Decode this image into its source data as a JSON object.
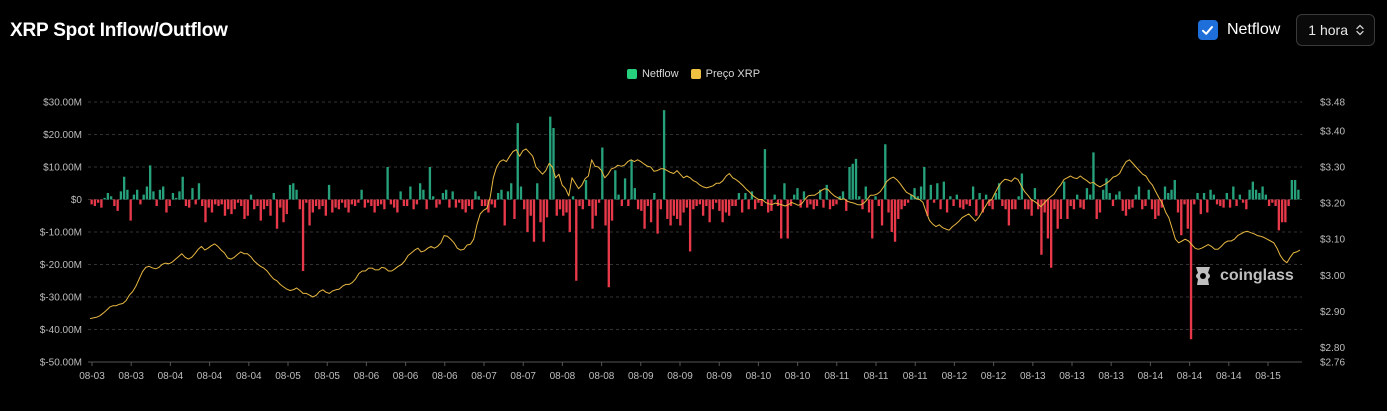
{
  "header": {
    "title": "XRP Spot Inflow/Outflow"
  },
  "controls": {
    "netflow_checkbox_label": "Netflow",
    "netflow_checked": true,
    "interval_value": "1 hora"
  },
  "colors": {
    "positive": "#26a17b",
    "negative": "#e8394a",
    "price": "#e8b842",
    "grid": "#333333",
    "checkbox": "#1e6fd9"
  },
  "watermark": "coinglass",
  "chart_data": {
    "type": "bar",
    "title": "XRP Spot Inflow/Outflow",
    "legend": [
      "Netflow",
      "Preço XRP"
    ],
    "legend_position": "top-center",
    "grid": true,
    "y_left": {
      "ticks": [
        30,
        20,
        10,
        0,
        -10,
        -20,
        -30,
        -40,
        -50
      ],
      "tick_labels": [
        "$30.00M",
        "$20.00M",
        "$10.00M",
        "$0",
        "$-10.00M",
        "$-20.00M",
        "$-30.00M",
        "$-40.00M",
        "$-50.00M"
      ],
      "ylim": [
        -50,
        30
      ],
      "unit": "USD millions"
    },
    "y_right": {
      "ticks": [
        3.48,
        3.4,
        3.3,
        3.2,
        3.1,
        3.0,
        2.9,
        2.8,
        2.76
      ],
      "tick_labels": [
        "$3.48",
        "$3.40",
        "$3.30",
        "$3.20",
        "$3.10",
        "$3.00",
        "$2.90",
        "$2.80",
        "$2.76"
      ],
      "ylim": [
        2.76,
        3.48
      ]
    },
    "x_tick_labels": [
      "08-03",
      "08-03",
      "08-04",
      "08-04",
      "08-04",
      "08-05",
      "08-05",
      "08-06",
      "08-06",
      "08-06",
      "08-07",
      "08-07",
      "08-08",
      "08-08",
      "08-09",
      "08-09",
      "08-09",
      "08-10",
      "08-10",
      "08-11",
      "08-11",
      "08-11",
      "08-12",
      "08-12",
      "08-13",
      "08-13",
      "08-13",
      "08-14",
      "08-14",
      "08-14",
      "08-15"
    ],
    "series": [
      {
        "name": "Netflow",
        "type": "bar",
        "values": [
          -1.5,
          -2,
          -1,
          -2.5,
          0.5,
          2,
          1,
          -2,
          -3.5,
          2.5,
          7,
          3,
          -6.5,
          1.5,
          3,
          -1.5,
          1.5,
          4,
          10.5,
          2.5,
          -2,
          3,
          4,
          -4,
          -2,
          2,
          0.5,
          2.5,
          7,
          -2,
          -2.5,
          3.5,
          -1.5,
          5,
          -2,
          -7,
          -2.5,
          -4,
          -1.5,
          -2,
          -1.5,
          -5,
          -3,
          -4.5,
          -3,
          -1,
          -2,
          -6,
          -5,
          1.5,
          -3,
          -2,
          -6.5,
          -3,
          -2,
          -5,
          2,
          -9,
          -2.5,
          -7,
          -4.5,
          4.5,
          5,
          3,
          -3,
          -22,
          -1,
          -8,
          -4,
          -2,
          -3,
          -2,
          -5,
          4.5,
          -4,
          -2.5,
          -3,
          -1,
          -2.5,
          -4,
          -1.5,
          -2,
          -1,
          3,
          -2.5,
          -1,
          -2,
          -4,
          -2,
          -1.5,
          -3,
          10,
          -1.5,
          -2.5,
          -4,
          2.5,
          -2,
          -2,
          4,
          -3,
          -1.5,
          5,
          3,
          -3,
          10,
          1,
          -2.5,
          -1.5,
          2,
          3,
          -2.5,
          2.5,
          -2.5,
          -1,
          -3,
          -4,
          -2,
          -3,
          2.5,
          1,
          -2,
          -2,
          -4,
          -1.5,
          -2.5,
          2,
          3,
          -8,
          2.5,
          5,
          -6,
          23.5,
          4,
          -3,
          -10,
          -5,
          -13,
          5,
          -7,
          -13,
          -5.5,
          25.5,
          22,
          -5,
          -3,
          -5,
          -4,
          -10,
          1,
          -25,
          -2,
          -3,
          6,
          -2,
          -9,
          -5,
          -1,
          16,
          -8,
          -27,
          -6.5,
          9,
          1.5,
          -2,
          6.5,
          -2,
          12,
          3.5,
          -3,
          -3.5,
          -9,
          -2,
          -7,
          2,
          -10.5,
          -3,
          27.5,
          -6,
          -8,
          -5,
          -6,
          -8,
          -4,
          -2.5,
          -16,
          -3,
          -2,
          -1.5,
          -5,
          -2,
          -7,
          -3,
          -1,
          -3.5,
          -7,
          -4,
          -5,
          -2,
          -2,
          2,
          -4,
          2,
          -3,
          2.5,
          -3,
          -1,
          -2,
          15.5,
          -4,
          -3.5,
          1.5,
          -2,
          -12,
          5,
          -12,
          -2,
          1.5,
          3.5,
          -2.5,
          2.5,
          -2.5,
          -1.5,
          -3,
          -2,
          3,
          -2.5,
          4.5,
          -3,
          -2,
          -1.5,
          1,
          2.5,
          -3.5,
          10,
          11,
          12.5,
          1,
          -3,
          4,
          -4,
          -12,
          1,
          -2,
          -8,
          17,
          -4,
          -10,
          -13,
          -6,
          -3,
          -2,
          -1,
          1.5,
          3.5,
          1,
          4,
          10,
          -5,
          4.5,
          -1,
          5,
          -3,
          5.5,
          -4,
          1,
          -2,
          1.5,
          -2.5,
          -3,
          -1.5,
          -2,
          4,
          -5,
          2,
          -4,
          1.5,
          -2,
          -3,
          2,
          5,
          -2,
          -3,
          -8,
          -3,
          -3,
          1,
          8,
          -3,
          -3,
          -5,
          3.5,
          -3,
          -17,
          -4,
          -12,
          -21,
          -3,
          -9,
          -6,
          5.5,
          -6,
          -2,
          -3,
          1.5,
          -2.5,
          -3,
          3.5,
          1.5,
          14.5,
          -6,
          -4,
          3,
          6.5,
          2,
          -2,
          1.5,
          2.5,
          -3.5,
          -5,
          -3,
          -2.5,
          1.5,
          4,
          -3,
          -2,
          3,
          -3,
          -6,
          -5,
          -2.5,
          4,
          2,
          3,
          6,
          -4,
          -11,
          -1.5,
          -9,
          -43,
          -1.5,
          2,
          -4.5,
          2,
          -4,
          3,
          1.5,
          -1.5,
          -2,
          -2.5,
          2,
          -2.5,
          4,
          -2,
          1.5,
          -1,
          -3,
          3,
          5.5,
          3,
          2,
          4,
          1.5,
          -2,
          -1,
          -2,
          -9.5,
          -7,
          -7,
          -2,
          6,
          6,
          3
        ]
      },
      {
        "name": "Preço XRP",
        "type": "line",
        "values": [
          2.88,
          2.882,
          2.884,
          2.888,
          2.895,
          2.903,
          2.912,
          2.916,
          2.916,
          2.92,
          2.922,
          2.93,
          2.945,
          2.955,
          2.97,
          2.99,
          3.01,
          3.022,
          3.025,
          3.021,
          3.018,
          3.022,
          3.03,
          3.034,
          3.032,
          3.036,
          3.044,
          3.052,
          3.06,
          3.05,
          3.045,
          3.05,
          3.06,
          3.072,
          3.08,
          3.07,
          3.075,
          3.082,
          3.087,
          3.08,
          3.07,
          3.062,
          3.048,
          3.045,
          3.05,
          3.058,
          3.065,
          3.06,
          3.06,
          3.052,
          3.04,
          3.032,
          3.025,
          3.02,
          3.012,
          3.0,
          2.99,
          2.985,
          2.975,
          2.968,
          2.962,
          2.958,
          2.96,
          2.965,
          2.958,
          2.95,
          2.95,
          2.945,
          2.94,
          2.945,
          2.955,
          2.96,
          2.953,
          2.95,
          2.957,
          2.96,
          2.962,
          2.97,
          2.975,
          2.975,
          2.98,
          2.99,
          3.005,
          3.012,
          3.012,
          3.02,
          3.02,
          3.015,
          3.015,
          3.022,
          3.02,
          3.012,
          3.012,
          3.018,
          3.025,
          3.03,
          3.04,
          3.055,
          3.062,
          3.07,
          3.075,
          3.065,
          3.068,
          3.075,
          3.08,
          3.075,
          3.08,
          3.09,
          3.11,
          3.108,
          3.1,
          3.09,
          3.075,
          3.07,
          3.072,
          3.084,
          3.086,
          3.1,
          3.14,
          3.17,
          3.18,
          3.185,
          3.215,
          3.27,
          3.3,
          3.315,
          3.32,
          3.315,
          3.33,
          3.343,
          3.348,
          3.33,
          3.345,
          3.35,
          3.34,
          3.33,
          3.3,
          3.29,
          3.28,
          3.29,
          3.31,
          3.3,
          3.27,
          3.28,
          3.25,
          3.24,
          3.22,
          3.27,
          3.255,
          3.24,
          3.25,
          3.268,
          3.275,
          3.32,
          3.302,
          3.3,
          3.29,
          3.27,
          3.28,
          3.295,
          3.298,
          3.305,
          3.302,
          3.305,
          3.315,
          3.32,
          3.315,
          3.32,
          3.315,
          3.308,
          3.302,
          3.3,
          3.288,
          3.29,
          3.295,
          3.295,
          3.29,
          3.285,
          3.282,
          3.29,
          3.28,
          3.27,
          3.275,
          3.27,
          3.262,
          3.258,
          3.25,
          3.245,
          3.242,
          3.245,
          3.248,
          3.255,
          3.255,
          3.262,
          3.275,
          3.282,
          3.27,
          3.265,
          3.258,
          3.25,
          3.24,
          3.232,
          3.222,
          3.215,
          3.21,
          3.21,
          3.202,
          3.198,
          3.196,
          3.2,
          3.198,
          3.195,
          3.192,
          3.196,
          3.202,
          3.198,
          3.194,
          3.198,
          3.21,
          3.22,
          3.222,
          3.222,
          3.228,
          3.235,
          3.24,
          3.238,
          3.228,
          3.22,
          3.215,
          3.21,
          3.212,
          3.205,
          3.202,
          3.2,
          3.196,
          3.195,
          3.2,
          3.21,
          3.222,
          3.222,
          3.225,
          3.232,
          3.245,
          3.26,
          3.268,
          3.272,
          3.265,
          3.255,
          3.242,
          3.23,
          3.225,
          3.22,
          3.212,
          3.21,
          3.202,
          3.175,
          3.152,
          3.142,
          3.135,
          3.14,
          3.132,
          3.128,
          3.125,
          3.135,
          3.142,
          3.15,
          3.16,
          3.165,
          3.17,
          3.16,
          3.15,
          3.16,
          3.175,
          3.19,
          3.205,
          3.21,
          3.228,
          3.245,
          3.258,
          3.266,
          3.264,
          3.26,
          3.27,
          3.265,
          3.248,
          3.232,
          3.222,
          3.21,
          3.205,
          3.198,
          3.19,
          3.2,
          3.21,
          3.218,
          3.225,
          3.24,
          3.25,
          3.265,
          3.27,
          3.275,
          3.27,
          3.268,
          3.275,
          3.268,
          3.262,
          3.255,
          3.258,
          3.25,
          3.245,
          3.25,
          3.255,
          3.262,
          3.272,
          3.275,
          3.282,
          3.3,
          3.315,
          3.32,
          3.31,
          3.3,
          3.29,
          3.28,
          3.275,
          3.26,
          3.25,
          3.232,
          3.215,
          3.2,
          3.175,
          3.16,
          3.13,
          3.1,
          3.09,
          3.095,
          3.1,
          3.095,
          3.085,
          3.075,
          3.072,
          3.075,
          3.08,
          3.085,
          3.08,
          3.072,
          3.072,
          3.08,
          3.09,
          3.095,
          3.095,
          3.1,
          3.11,
          3.115,
          3.12,
          3.122,
          3.118,
          3.115,
          3.11,
          3.108,
          3.105,
          3.1,
          3.095,
          3.09,
          3.075,
          3.055,
          3.042,
          3.035,
          3.05,
          3.062,
          3.065,
          3.07
        ]
      }
    ]
  }
}
